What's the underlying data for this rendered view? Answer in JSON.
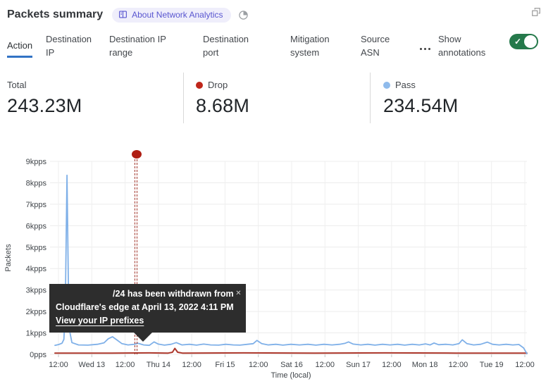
{
  "header": {
    "title": "Packets summary",
    "about_badge": "About Network Analytics"
  },
  "icons": {
    "close": "✕",
    "check": "✓"
  },
  "tabs": [
    {
      "label": "Action",
      "active": true
    },
    {
      "label": "Destination IP",
      "active": false
    },
    {
      "label": "Destination IP range",
      "active": false
    },
    {
      "label": "Destination port",
      "active": false
    },
    {
      "label": "Mitigation system",
      "active": false
    },
    {
      "label": "Source ASN",
      "active": false
    }
  ],
  "annotations_toggle": {
    "label": "Show annotations",
    "state": "on",
    "color": "#25794b"
  },
  "stats": {
    "total": {
      "label": "Total",
      "value": "243.23M"
    },
    "drop": {
      "label": "Drop",
      "value": "8.68M",
      "dot_color": "#bf261a"
    },
    "pass": {
      "label": "Pass",
      "value": "234.54M",
      "dot_color": "#8fbbec"
    }
  },
  "tooltip": {
    "line1": "/24 has been withdrawn from",
    "line2": "Cloudflare's edge at April 13, 2022 4:11 PM",
    "link_label": "View your IP prefixes"
  },
  "chart_data": {
    "type": "line",
    "title": "Packets summary",
    "xlabel": "Time (local)",
    "ylabel": "Packets",
    "y_unit": "kpps",
    "y_max_kpps": 9,
    "y_ticks": [
      "0pps",
      "1kpps",
      "2kpps",
      "3kpps",
      "4kpps",
      "5kpps",
      "6kpps",
      "7kpps",
      "8kpps",
      "9kpps"
    ],
    "x_ticks": [
      "12:00",
      "Wed 13",
      "12:00",
      "Thu 14",
      "12:00",
      "Fri 15",
      "12:00",
      "Sat 16",
      "12:00",
      "Sun 17",
      "12:00",
      "Mon 18",
      "12:00",
      "Tue 19",
      "12:00"
    ],
    "grid": true,
    "legend_position": "top (stat cards)",
    "series": [
      {
        "name": "Drop",
        "color": "#ac372b",
        "points": [
          [
            0,
            0.06
          ],
          [
            0.12,
            0.06
          ],
          [
            0.2,
            0.07
          ],
          [
            0.24,
            0.06
          ],
          [
            0.249,
            0.1
          ],
          [
            0.254,
            0.28
          ],
          [
            0.26,
            0.1
          ],
          [
            0.27,
            0.06
          ],
          [
            0.4,
            0.07
          ],
          [
            0.55,
            0.06
          ],
          [
            0.7,
            0.07
          ],
          [
            0.85,
            0.06
          ],
          [
            1,
            0.06
          ]
        ]
      },
      {
        "name": "Pass",
        "color": "#7fb0e8",
        "points": [
          [
            0,
            0.42
          ],
          [
            0.008,
            0.46
          ],
          [
            0.015,
            0.52
          ],
          [
            0.019,
            0.7
          ],
          [
            0.022,
            2.2
          ],
          [
            0.0255,
            8.35
          ],
          [
            0.029,
            2.4
          ],
          [
            0.032,
            1.0
          ],
          [
            0.036,
            0.55
          ],
          [
            0.05,
            0.44
          ],
          [
            0.07,
            0.43
          ],
          [
            0.09,
            0.47
          ],
          [
            0.104,
            0.54
          ],
          [
            0.113,
            0.73
          ],
          [
            0.122,
            0.82
          ],
          [
            0.132,
            0.66
          ],
          [
            0.142,
            0.5
          ],
          [
            0.155,
            0.44
          ],
          [
            0.168,
            0.47
          ],
          [
            0.176,
            0.52
          ],
          [
            0.188,
            0.44
          ],
          [
            0.2,
            0.42
          ],
          [
            0.21,
            0.58
          ],
          [
            0.219,
            0.48
          ],
          [
            0.232,
            0.43
          ],
          [
            0.246,
            0.47
          ],
          [
            0.257,
            0.55
          ],
          [
            0.269,
            0.44
          ],
          [
            0.285,
            0.47
          ],
          [
            0.3,
            0.43
          ],
          [
            0.315,
            0.48
          ],
          [
            0.33,
            0.44
          ],
          [
            0.347,
            0.43
          ],
          [
            0.362,
            0.47
          ],
          [
            0.378,
            0.44
          ],
          [
            0.392,
            0.43
          ],
          [
            0.408,
            0.47
          ],
          [
            0.42,
            0.5
          ],
          [
            0.428,
            0.65
          ],
          [
            0.438,
            0.5
          ],
          [
            0.452,
            0.44
          ],
          [
            0.468,
            0.47
          ],
          [
            0.483,
            0.43
          ],
          [
            0.5,
            0.47
          ],
          [
            0.518,
            0.44
          ],
          [
            0.536,
            0.47
          ],
          [
            0.553,
            0.43
          ],
          [
            0.57,
            0.47
          ],
          [
            0.587,
            0.44
          ],
          [
            0.603,
            0.47
          ],
          [
            0.615,
            0.52
          ],
          [
            0.622,
            0.58
          ],
          [
            0.632,
            0.48
          ],
          [
            0.648,
            0.44
          ],
          [
            0.663,
            0.47
          ],
          [
            0.678,
            0.43
          ],
          [
            0.694,
            0.47
          ],
          [
            0.71,
            0.44
          ],
          [
            0.726,
            0.47
          ],
          [
            0.741,
            0.43
          ],
          [
            0.757,
            0.47
          ],
          [
            0.772,
            0.44
          ],
          [
            0.785,
            0.49
          ],
          [
            0.795,
            0.44
          ],
          [
            0.803,
            0.53
          ],
          [
            0.813,
            0.45
          ],
          [
            0.828,
            0.47
          ],
          [
            0.843,
            0.44
          ],
          [
            0.856,
            0.5
          ],
          [
            0.863,
            0.68
          ],
          [
            0.873,
            0.5
          ],
          [
            0.887,
            0.44
          ],
          [
            0.902,
            0.47
          ],
          [
            0.916,
            0.57
          ],
          [
            0.927,
            0.47
          ],
          [
            0.941,
            0.44
          ],
          [
            0.956,
            0.47
          ],
          [
            0.97,
            0.44
          ],
          [
            0.983,
            0.46
          ],
          [
            0.993,
            0.3
          ],
          [
            1,
            0.03
          ]
        ]
      }
    ],
    "annotation": {
      "t": 0.173,
      "time_label": "April 13, 2022 4:11 PM",
      "marker_color": "#af1e13"
    }
  }
}
